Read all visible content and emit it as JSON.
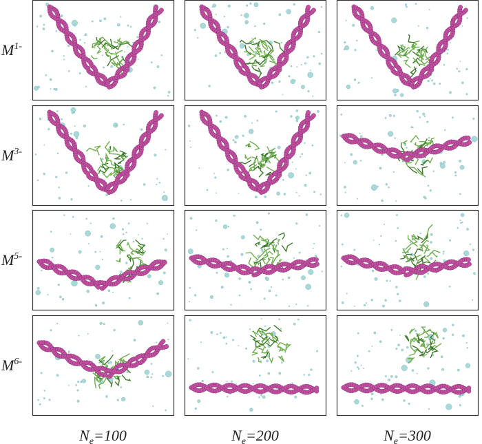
{
  "rows": [
    {
      "base": "M",
      "sup": "1-"
    },
    {
      "base": "M",
      "sup": "3-"
    },
    {
      "base": "M",
      "sup": "5-"
    },
    {
      "base": "M",
      "sup": "6-"
    }
  ],
  "columns": [
    {
      "base": "N",
      "sub": "e",
      "rest": "=100"
    },
    {
      "base": "N",
      "sub": "e",
      "rest": "=200"
    },
    {
      "base": "N",
      "sub": "e",
      "rest": "=300"
    }
  ]
}
